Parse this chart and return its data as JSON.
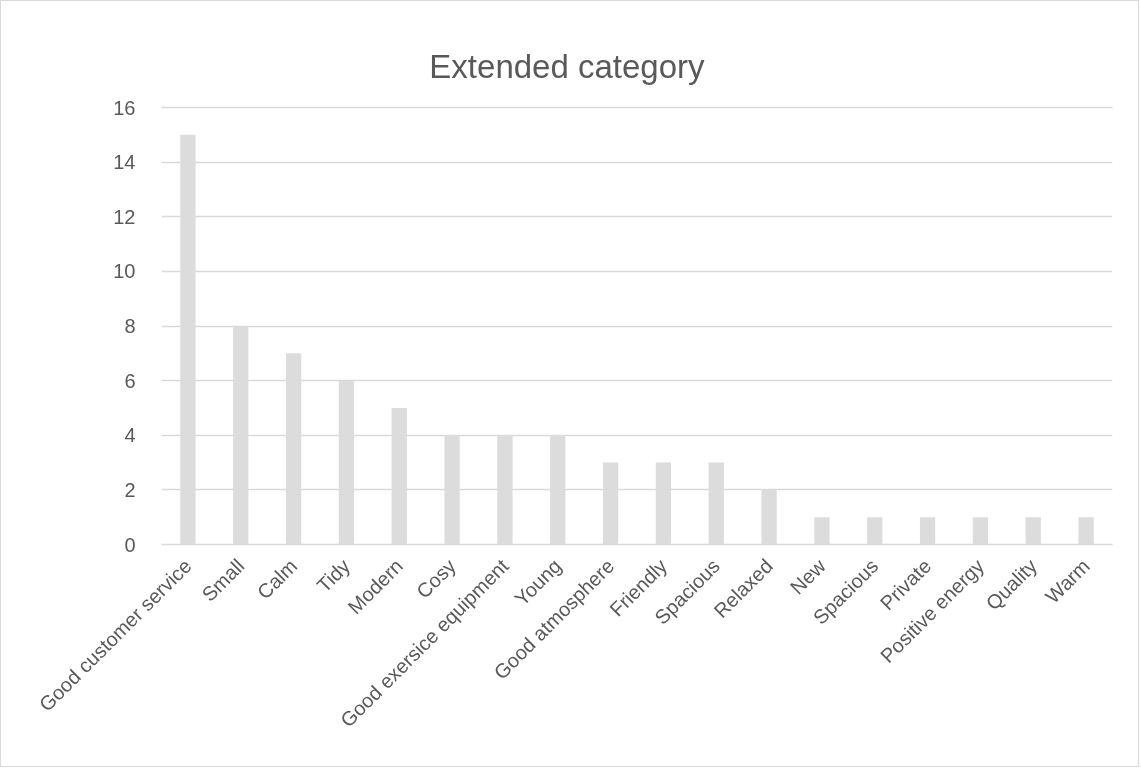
{
  "chart_data": {
    "type": "bar",
    "title": "Extended category",
    "categories": [
      "Good customer service",
      "Small",
      "Calm",
      "Tidy",
      "Modern",
      "Cosy",
      "Good exersice equipment",
      "Young",
      "Good atmosphere",
      "Friendly",
      "Spacious",
      "Relaxed",
      "New",
      "Spacious",
      "Private",
      "Positive energy",
      "Quality",
      "Warm"
    ],
    "values": [
      15,
      8,
      7,
      6,
      5,
      4,
      4,
      4,
      3,
      3,
      3,
      2,
      1,
      1,
      1,
      1,
      1,
      1
    ],
    "color": "#dcdcdc",
    "ylim": [
      0,
      16
    ],
    "yticks": [
      0,
      2,
      4,
      6,
      8,
      10,
      12,
      14,
      16
    ],
    "grid": "y"
  }
}
